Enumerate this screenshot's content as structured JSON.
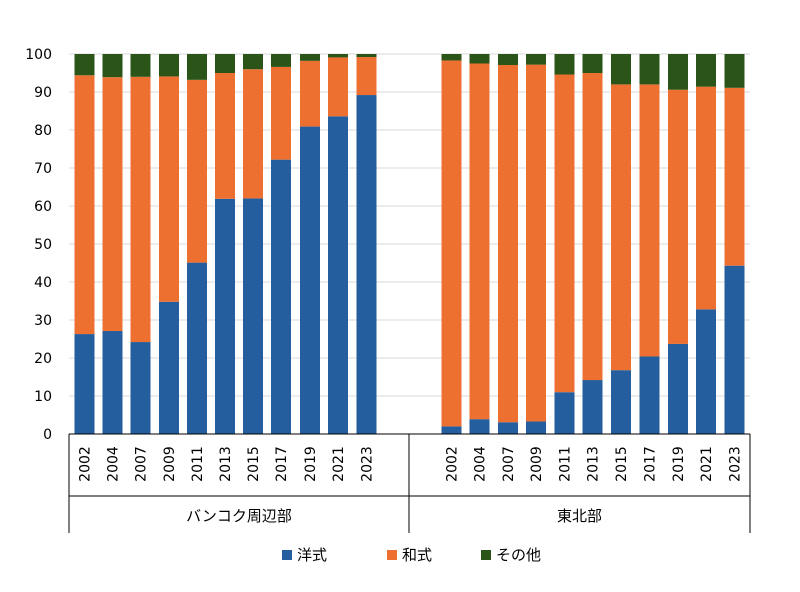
{
  "chart_data": {
    "type": "bar",
    "stacked": true,
    "ylim": [
      0,
      100
    ],
    "yticks": [
      0,
      10,
      20,
      30,
      40,
      50,
      60,
      70,
      80,
      90,
      100
    ],
    "grid": true,
    "legend_position": "bottom",
    "groups": [
      {
        "name": "バンコク周辺部",
        "categories": [
          "2002",
          "2004",
          "2007",
          "2009",
          "2011",
          "2013",
          "2015",
          "2017",
          "2019",
          "2021",
          "2023"
        ]
      },
      {
        "name": "東北部",
        "categories": [
          "2002",
          "2004",
          "2007",
          "2009",
          "2011",
          "2013",
          "2015",
          "2017",
          "2019",
          "2021",
          "2023"
        ]
      }
    ],
    "series": [
      {
        "name": "洋式",
        "color": "#255E9E",
        "values": [
          [
            26.3,
            27.1,
            24.2,
            34.8,
            45.1,
            61.9,
            62.0,
            72.2,
            80.9,
            83.6,
            89.2
          ],
          [
            2.0,
            3.9,
            3.1,
            3.3,
            11.0,
            14.2,
            16.8,
            20.4,
            23.7,
            32.8,
            44.3
          ]
        ]
      },
      {
        "name": "和式",
        "color": "#ED7030",
        "values": [
          [
            68.1,
            66.8,
            69.8,
            59.3,
            48.1,
            33.1,
            34.0,
            24.4,
            17.3,
            15.5,
            10.0
          ],
          [
            96.3,
            93.6,
            94.0,
            93.9,
            83.6,
            80.8,
            75.2,
            71.6,
            66.9,
            58.6,
            46.8
          ]
        ]
      },
      {
        "name": "その他",
        "color": "#2A5418",
        "values": [
          [
            5.6,
            6.1,
            6.0,
            5.9,
            6.8,
            5.0,
            4.0,
            3.4,
            1.8,
            0.9,
            0.8
          ],
          [
            1.7,
            2.5,
            2.9,
            2.8,
            5.4,
            5.0,
            8.0,
            8.0,
            9.4,
            8.6,
            8.9
          ]
        ]
      }
    ]
  }
}
